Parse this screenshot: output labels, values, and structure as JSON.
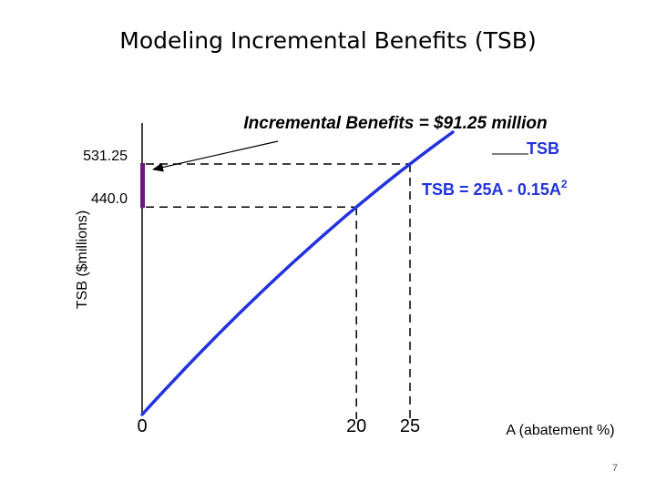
{
  "slide": {
    "title": "Modeling Incremental Benefits (TSB)",
    "page_number": "7"
  },
  "chart_data": {
    "type": "line",
    "title": "",
    "xlabel": "A (abatement %)",
    "ylabel": "TSB ($millions)",
    "series": [
      {
        "name": "TSB",
        "formula": "TSB = 25A - 0.15A",
        "formula_superscript": "2",
        "color": "#2233dd",
        "x": [
          0,
          1,
          2,
          3,
          4,
          5,
          6,
          7,
          8,
          9,
          10,
          11,
          12,
          13,
          14,
          15,
          16,
          17,
          18,
          19,
          20,
          21,
          22,
          23,
          24,
          25,
          26,
          27,
          28,
          29
        ],
        "y": [
          0,
          24.85,
          49.4,
          73.65,
          97.6,
          121.25,
          144.6,
          167.65,
          190.4,
          212.85,
          235,
          256.85,
          278.4,
          299.65,
          320.6,
          341.25,
          361.6,
          381.65,
          401.4,
          420.85,
          440,
          458.85,
          477.4,
          495.65,
          513.6,
          531.25,
          548.6,
          565.65,
          582.4,
          598.85
        ]
      }
    ],
    "x_ticks": [
      {
        "value": 0,
        "label": "0"
      },
      {
        "value": 20,
        "label": "20"
      },
      {
        "value": 25,
        "label": "25"
      }
    ],
    "y_ticks": [
      {
        "value": 531.25,
        "label": "531.25"
      },
      {
        "value": 440,
        "label": "440.0"
      }
    ],
    "reference_points": [
      {
        "x": 20,
        "y": 440
      },
      {
        "x": 25,
        "y": 531.25
      }
    ],
    "annotations": {
      "incremental_benefits": "Incremental Benefits = $91.25 million",
      "increment_from": 440,
      "increment_to": 531.25,
      "increment_color": "#6a1b7a",
      "arrow_color": "#000000"
    },
    "xlim": [
      0,
      29
    ],
    "grid": false
  }
}
